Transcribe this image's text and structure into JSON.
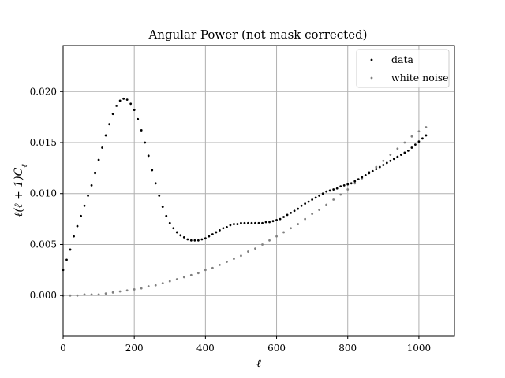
{
  "chart_data": {
    "type": "scatter",
    "title": "Angular Power (not mask corrected)",
    "xlabel": "ℓ",
    "ylabel": "ℓ(ℓ+1)C_ℓ",
    "ylabel_parts": {
      "main": "ℓ(ℓ + 1)C",
      "sub": "ℓ"
    },
    "xlim": [
      0,
      1100
    ],
    "ylim": [
      -0.004,
      0.0245
    ],
    "xticks": [
      0,
      200,
      400,
      600,
      800,
      1000
    ],
    "xtick_labels": [
      "0",
      "200",
      "400",
      "600",
      "800",
      "1000"
    ],
    "yticks": [
      0.0,
      0.005,
      0.01,
      0.015,
      0.02
    ],
    "ytick_labels": [
      "0.000",
      "0.005",
      "0.010",
      "0.015",
      "0.020"
    ],
    "grid": true,
    "legend_position": "top-right",
    "series": [
      {
        "name": "data",
        "color": "#000000",
        "x": [
          0,
          10,
          20,
          30,
          40,
          50,
          60,
          70,
          80,
          90,
          100,
          110,
          120,
          130,
          140,
          150,
          160,
          170,
          180,
          190,
          200,
          210,
          220,
          230,
          240,
          250,
          260,
          270,
          280,
          290,
          300,
          310,
          320,
          330,
          340,
          350,
          360,
          370,
          380,
          390,
          400,
          410,
          420,
          430,
          440,
          450,
          460,
          470,
          480,
          490,
          500,
          510,
          520,
          530,
          540,
          550,
          560,
          570,
          580,
          590,
          600,
          610,
          620,
          630,
          640,
          650,
          660,
          670,
          680,
          690,
          700,
          710,
          720,
          730,
          740,
          750,
          760,
          770,
          780,
          790,
          800,
          810,
          820,
          830,
          840,
          850,
          860,
          870,
          880,
          890,
          900,
          910,
          920,
          930,
          940,
          950,
          960,
          970,
          980,
          990,
          1000,
          1010,
          1020
        ],
        "y": [
          0.0025,
          0.0035,
          0.0045,
          0.0058,
          0.0068,
          0.0078,
          0.0088,
          0.0098,
          0.0108,
          0.012,
          0.0133,
          0.0145,
          0.0157,
          0.0168,
          0.0178,
          0.0186,
          0.0191,
          0.0193,
          0.0192,
          0.0188,
          0.0182,
          0.0173,
          0.0162,
          0.015,
          0.0137,
          0.0123,
          0.011,
          0.0098,
          0.0087,
          0.0078,
          0.0071,
          0.0066,
          0.0062,
          0.0059,
          0.0057,
          0.0055,
          0.0054,
          0.0054,
          0.0054,
          0.0055,
          0.0056,
          0.0058,
          0.006,
          0.0062,
          0.0064,
          0.0066,
          0.0067,
          0.0069,
          0.007,
          0.007,
          0.0071,
          0.0071,
          0.0071,
          0.0071,
          0.0071,
          0.0071,
          0.0071,
          0.0072,
          0.0072,
          0.0073,
          0.0074,
          0.0075,
          0.0077,
          0.0079,
          0.0081,
          0.0083,
          0.0085,
          0.0088,
          0.009,
          0.0092,
          0.0094,
          0.0096,
          0.0098,
          0.01,
          0.0102,
          0.0103,
          0.0104,
          0.0105,
          0.0107,
          0.0108,
          0.0109,
          0.011,
          0.0112,
          0.0114,
          0.0116,
          0.0118,
          0.012,
          0.0122,
          0.0124,
          0.0126,
          0.0128,
          0.013,
          0.0132,
          0.0134,
          0.0136,
          0.0138,
          0.014,
          0.0142,
          0.0145,
          0.0148,
          0.0151,
          0.0154,
          0.0157
        ]
      },
      {
        "name": "white noise",
        "color": "#808080",
        "x": [
          0,
          20,
          40,
          60,
          80,
          100,
          120,
          140,
          160,
          180,
          200,
          220,
          240,
          260,
          280,
          300,
          320,
          340,
          360,
          380,
          400,
          420,
          440,
          460,
          480,
          500,
          520,
          540,
          560,
          580,
          600,
          620,
          640,
          660,
          680,
          700,
          720,
          740,
          760,
          780,
          800,
          820,
          840,
          860,
          880,
          900,
          920,
          940,
          960,
          980,
          1000,
          1020
        ],
        "y": [
          0.0,
          0.0,
          0.0,
          0.0001,
          0.0001,
          0.0001,
          0.0002,
          0.0003,
          0.0004,
          0.0005,
          0.0006,
          0.0007,
          0.0009,
          0.001,
          0.0012,
          0.0014,
          0.0016,
          0.0018,
          0.002,
          0.0022,
          0.0025,
          0.0027,
          0.003,
          0.0033,
          0.0036,
          0.0039,
          0.0043,
          0.0046,
          0.005,
          0.0054,
          0.0058,
          0.0062,
          0.0066,
          0.007,
          0.0075,
          0.008,
          0.0084,
          0.0089,
          0.0094,
          0.0099,
          0.0104,
          0.011,
          0.0115,
          0.0121,
          0.0126,
          0.0132,
          0.0138,
          0.0144,
          0.015,
          0.0156,
          0.0161,
          0.0165
        ]
      }
    ]
  }
}
